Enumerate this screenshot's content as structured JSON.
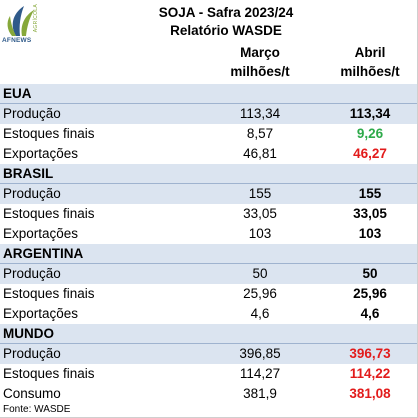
{
  "logo": {
    "icon": "afnews-logo",
    "text": "AFNEWS",
    "side_text": "AGRÍCOLA"
  },
  "title": "SOJA - Safra 2023/24",
  "subtitle": "Relatório WASDE",
  "columns": {
    "marco": [
      "Março",
      "milhões/t"
    ],
    "abril": [
      "Abril",
      "milhões/t"
    ]
  },
  "colors": {
    "up": "#2eaa4a",
    "down": "#e21b1b",
    "section_bg": "#dbe4f0"
  },
  "sections": [
    {
      "name": "EUA",
      "rows": [
        {
          "label": "Produção",
          "marco": "113,34",
          "abril": "113,34",
          "change": "same"
        },
        {
          "label": "Estoques finais",
          "marco": "8,57",
          "abril": "9,26",
          "change": "up"
        },
        {
          "label": "Exportações",
          "marco": "46,81",
          "abril": "46,27",
          "change": "down"
        }
      ]
    },
    {
      "name": "BRASIL",
      "rows": [
        {
          "label": "Produção",
          "marco": "155",
          "abril": "155",
          "change": "same"
        },
        {
          "label": "Estoques finais",
          "marco": "33,05",
          "abril": "33,05",
          "change": "same"
        },
        {
          "label": "Exportações",
          "marco": "103",
          "abril": "103",
          "change": "same"
        }
      ]
    },
    {
      "name": "ARGENTINA",
      "rows": [
        {
          "label": "Produção",
          "marco": "50",
          "abril": "50",
          "change": "same"
        },
        {
          "label": "Estoques finais",
          "marco": "25,96",
          "abril": "25,96",
          "change": "same"
        },
        {
          "label": "Exportações",
          "marco": "4,6",
          "abril": "4,6",
          "change": "same"
        }
      ]
    },
    {
      "name": "MUNDO",
      "rows": [
        {
          "label": "Produção",
          "marco": "396,85",
          "abril": "396,73",
          "change": "down"
        },
        {
          "label": "Estoques finais",
          "marco": "114,27",
          "abril": "114,22",
          "change": "down"
        },
        {
          "label": "Consumo",
          "marco": "381,9",
          "abril": "381,08",
          "change": "down"
        }
      ]
    }
  ],
  "footer": "Fonte: WASDE"
}
